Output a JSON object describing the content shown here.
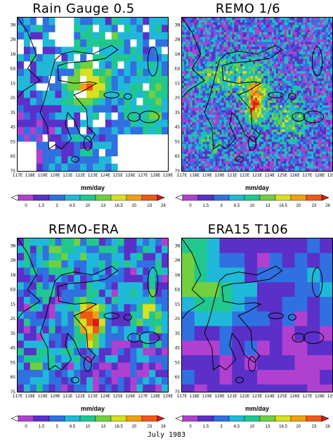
{
  "chart_data": {
    "type": "heatmap",
    "footer": "July 1983",
    "colorbar": {
      "unit": "mm/day",
      "levels": [
        "0",
        "1.5",
        "3",
        "6.5",
        "10",
        "13",
        "16.5",
        "20",
        "23",
        "26.5"
      ],
      "colors": [
        "#ffffff",
        "#b040d0",
        "#5a30c8",
        "#3070e0",
        "#20b8d8",
        "#20c890",
        "#70d040",
        "#d8e020",
        "#f0a010",
        "#f05818",
        "#e01818"
      ]
    },
    "x_ticks": [
      "117E",
      "118E",
      "119E",
      "120E",
      "121E",
      "122E",
      "123E",
      "124E",
      "125E",
      "126E",
      "127E",
      "128E",
      "129E"
    ],
    "y_ticks": [
      "3N",
      "2N",
      "1N",
      "EQ",
      "1S",
      "2S",
      "3S",
      "4S",
      "5S",
      "6S",
      "7S"
    ],
    "panels": [
      {
        "title": "Rain Gauge 0.5",
        "resolution": 0.5,
        "style": "gauge"
      },
      {
        "title": "REMO 1/6",
        "resolution": 0.1667,
        "style": "remo"
      },
      {
        "title": "REMO-ERA",
        "resolution": 0.5,
        "style": "remoera"
      },
      {
        "title": "ERA15 T106",
        "resolution": 1.0,
        "style": "era"
      }
    ]
  }
}
